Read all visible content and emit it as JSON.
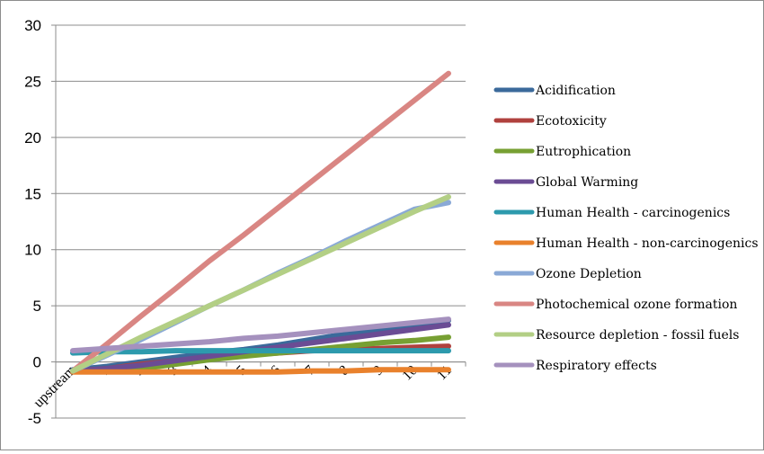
{
  "chart_data": {
    "type": "line",
    "categories": [
      "upstream",
      "1",
      "2",
      "3",
      "4",
      "5",
      "6",
      "7",
      "8",
      "9",
      "10",
      "11"
    ],
    "ylim": [
      -5,
      30
    ],
    "yticks": [
      "30",
      "25",
      "20",
      "15",
      "10",
      "5",
      "0",
      "-5"
    ],
    "grid": true,
    "legend_position": "right",
    "series": [
      {
        "name": "Acidification",
        "color": "#3b6a9b",
        "values": [
          -0.7,
          -0.4,
          0.0,
          0.4,
          0.8,
          1.1,
          1.5,
          2.0,
          2.5,
          2.8,
          3.2,
          3.7
        ]
      },
      {
        "name": "Ecotoxicity",
        "color": "#b0413e",
        "values": [
          -0.8,
          -0.6,
          -0.2,
          0.1,
          0.4,
          0.6,
          0.8,
          1.0,
          1.1,
          1.2,
          1.3,
          1.4
        ]
      },
      {
        "name": "Eutrophication",
        "color": "#77a033",
        "values": [
          -0.8,
          -0.8,
          -0.6,
          -0.2,
          0.2,
          0.5,
          0.8,
          1.1,
          1.4,
          1.7,
          1.9,
          2.2
        ]
      },
      {
        "name": "Global Warming",
        "color": "#6b4c94",
        "values": [
          -0.8,
          -0.6,
          -0.3,
          0.1,
          0.5,
          0.9,
          1.3,
          1.7,
          2.1,
          2.5,
          2.9,
          3.3
        ]
      },
      {
        "name": "Human Health - carcinogenics",
        "color": "#2d9aad",
        "values": [
          0.8,
          0.9,
          0.9,
          1.0,
          1.0,
          1.0,
          1.0,
          1.0,
          1.0,
          1.0,
          1.0,
          1.0
        ]
      },
      {
        "name": "Human Health - non-carcinogenics",
        "color": "#e9812c",
        "values": [
          -0.9,
          -0.9,
          -0.9,
          -0.9,
          -0.9,
          -0.9,
          -0.9,
          -0.8,
          -0.8,
          -0.7,
          -0.7,
          -0.7
        ]
      },
      {
        "name": "Ozone Depletion",
        "color": "#8aa9d6",
        "values": [
          -0.8,
          0.6,
          2.0,
          3.5,
          5.0,
          6.4,
          7.9,
          9.3,
          10.8,
          12.2,
          13.6,
          14.2
        ]
      },
      {
        "name": "Photochemical ozone formation",
        "color": "#d98683",
        "values": [
          -0.8,
          1.6,
          4.1,
          6.5,
          9.0,
          11.3,
          13.7,
          16.1,
          18.5,
          20.9,
          23.3,
          25.7
        ]
      },
      {
        "name": "Resource depletion - fossil fuels",
        "color": "#b3cf85",
        "values": [
          -0.8,
          0.7,
          2.2,
          3.6,
          5.0,
          6.4,
          7.8,
          9.2,
          10.6,
          12.0,
          13.4,
          14.7
        ]
      },
      {
        "name": "Respiratory effects",
        "color": "#a591be",
        "values": [
          1.0,
          1.2,
          1.4,
          1.6,
          1.8,
          2.1,
          2.3,
          2.6,
          2.9,
          3.2,
          3.5,
          3.8
        ]
      }
    ]
  }
}
